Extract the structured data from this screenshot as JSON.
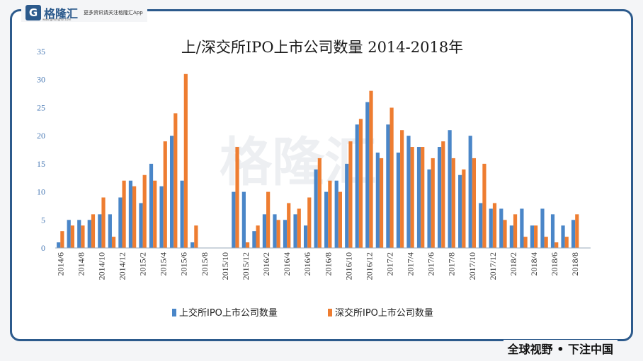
{
  "brand": {
    "name": "格隆汇",
    "url": "www.gelonghui.com",
    "slogan": "更多资讯请关注格隆汇App",
    "footer": "全球视野 • 下注中国",
    "watermark": "格隆汇"
  },
  "chart_data": {
    "type": "bar",
    "title": "上/深交所IPO上市公司数量 2014-2018年",
    "xlabel": "",
    "ylabel": "",
    "ylim": [
      0,
      35
    ],
    "yticks": [
      0,
      5,
      10,
      15,
      20,
      25,
      30,
      35
    ],
    "grid": false,
    "legend_position": "bottom",
    "categories": [
      "2014/6",
      "2014/7",
      "2014/8",
      "2014/9",
      "2014/10",
      "2014/11",
      "2014/12",
      "2015/1",
      "2015/2",
      "2015/3",
      "2015/4",
      "2015/5",
      "2015/6",
      "2015/7",
      "2015/8",
      "2015/9",
      "2015/10",
      "2015/11",
      "2015/12",
      "2016/1",
      "2016/2",
      "2016/3",
      "2016/4",
      "2016/5",
      "2016/6",
      "2016/7",
      "2016/8",
      "2016/9",
      "2016/10",
      "2016/11",
      "2016/12",
      "2017/1",
      "2017/2",
      "2017/3",
      "2017/4",
      "2017/5",
      "2017/6",
      "2017/7",
      "2017/8",
      "2017/9",
      "2017/10",
      "2017/11",
      "2017/12",
      "2018/1",
      "2018/2",
      "2018/3",
      "2018/4",
      "2018/5",
      "2018/6",
      "2018/7",
      "2018/8",
      "2018/9"
    ],
    "tick_labels": [
      "2014/6",
      "2014/8",
      "2014/10",
      "2014/12",
      "2015/2",
      "2015/4",
      "2015/6",
      "2015/8",
      "2015/10",
      "2015/12",
      "2016/2",
      "2016/4",
      "2016/6",
      "2016/8",
      "2016/10",
      "2016/12",
      "2017/2",
      "2017/4",
      "2017/6",
      "2017/8",
      "2017/10",
      "2017/12",
      "2018/2",
      "2018/4",
      "2018/6",
      "2018/8"
    ],
    "series": [
      {
        "name": "上交所IPO上市公司数量",
        "color": "#4a86c8",
        "values": [
          1,
          5,
          5,
          5,
          6,
          6,
          9,
          12,
          8,
          15,
          11,
          20,
          12,
          1,
          0,
          0,
          0,
          10,
          10,
          3,
          6,
          6,
          5,
          6,
          4,
          14,
          10,
          12,
          15,
          22,
          26,
          17,
          22,
          17,
          20,
          18,
          14,
          18,
          21,
          13,
          20,
          8,
          7,
          7,
          4,
          7,
          4,
          7,
          6,
          4,
          5,
          0
        ]
      },
      {
        "name": "深交所IPO上市公司数量",
        "color": "#ee7d31",
        "values": [
          3,
          4,
          4,
          6,
          9,
          2,
          12,
          11,
          13,
          12,
          19,
          24,
          31,
          4,
          0,
          0,
          0,
          18,
          1,
          4,
          10,
          5,
          8,
          7,
          9,
          16,
          12,
          10,
          19,
          23,
          28,
          16,
          25,
          21,
          18,
          18,
          16,
          19,
          16,
          14,
          16,
          15,
          8,
          5,
          6,
          2,
          4,
          2,
          1,
          2,
          6,
          0
        ]
      }
    ]
  }
}
